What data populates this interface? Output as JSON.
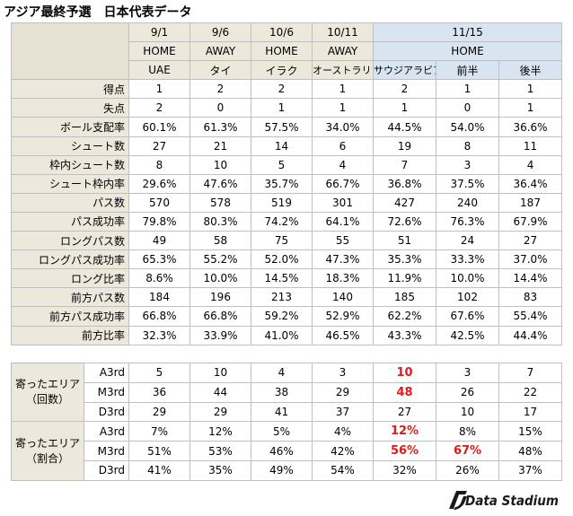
{
  "title": "アジア最終予選　日本代表データ",
  "matches": [
    {
      "date": "9/1",
      "venue": "HOME",
      "opponent": "UAE"
    },
    {
      "date": "9/6",
      "venue": "AWAY",
      "opponent": "タイ"
    },
    {
      "date": "10/6",
      "venue": "HOME",
      "opponent": "イラク"
    },
    {
      "date": "10/11",
      "venue": "AWAY",
      "opponent": "オーストラリア"
    }
  ],
  "latest": {
    "date": "11/15",
    "venue": "HOME",
    "columns": [
      "サウジアラビア",
      "前半",
      "後半"
    ]
  },
  "stats": [
    {
      "label": "得点",
      "values": [
        "1",
        "2",
        "2",
        "1",
        "2",
        "1",
        "1"
      ]
    },
    {
      "label": "失点",
      "values": [
        "2",
        "0",
        "1",
        "1",
        "1",
        "0",
        "1"
      ]
    },
    {
      "label": "ボール支配率",
      "values": [
        "60.1%",
        "61.3%",
        "57.5%",
        "34.0%",
        "44.5%",
        "54.0%",
        "36.6%"
      ]
    },
    {
      "label": "シュート数",
      "values": [
        "27",
        "21",
        "14",
        "6",
        "19",
        "8",
        "11"
      ]
    },
    {
      "label": "枠内シュート数",
      "values": [
        "8",
        "10",
        "5",
        "4",
        "7",
        "3",
        "4"
      ]
    },
    {
      "label": "シュート枠内率",
      "values": [
        "29.6%",
        "47.6%",
        "35.7%",
        "66.7%",
        "36.8%",
        "37.5%",
        "36.4%"
      ]
    },
    {
      "label": "パス数",
      "values": [
        "570",
        "578",
        "519",
        "301",
        "427",
        "240",
        "187"
      ]
    },
    {
      "label": "パス成功率",
      "values": [
        "79.8%",
        "80.3%",
        "74.2%",
        "64.1%",
        "72.6%",
        "76.3%",
        "67.9%"
      ]
    },
    {
      "label": "ロングパス数",
      "values": [
        "49",
        "58",
        "75",
        "55",
        "51",
        "24",
        "27"
      ]
    },
    {
      "label": "ロングパス成功率",
      "values": [
        "65.3%",
        "55.2%",
        "52.0%",
        "47.3%",
        "35.3%",
        "33.3%",
        "37.0%"
      ]
    },
    {
      "label": "ロング比率",
      "values": [
        "8.6%",
        "10.0%",
        "14.5%",
        "18.3%",
        "11.9%",
        "10.0%",
        "14.4%"
      ]
    },
    {
      "label": "前方パス数",
      "values": [
        "184",
        "196",
        "213",
        "140",
        "185",
        "102",
        "83"
      ]
    },
    {
      "label": "前方パス成功率",
      "values": [
        "66.8%",
        "66.8%",
        "59.2%",
        "52.9%",
        "62.2%",
        "67.6%",
        "55.4%"
      ]
    },
    {
      "label": "前方比率",
      "values": [
        "32.3%",
        "33.9%",
        "41.0%",
        "46.5%",
        "43.3%",
        "42.5%",
        "44.4%"
      ]
    }
  ],
  "areas": [
    {
      "label_line1": "寄ったエリア",
      "label_line2": "（回数）",
      "rows": [
        {
          "zone": "A3rd",
          "values": [
            "5",
            "10",
            "4",
            "3",
            "10",
            "3",
            "7"
          ],
          "highlight": [
            4
          ]
        },
        {
          "zone": "M3rd",
          "values": [
            "36",
            "44",
            "38",
            "29",
            "48",
            "26",
            "22"
          ],
          "highlight": [
            4
          ]
        },
        {
          "zone": "D3rd",
          "values": [
            "29",
            "29",
            "41",
            "37",
            "27",
            "10",
            "17"
          ],
          "highlight": []
        }
      ]
    },
    {
      "label_line1": "寄ったエリア",
      "label_line2": "（割合）",
      "rows": [
        {
          "zone": "A3rd",
          "values": [
            "7%",
            "12%",
            "5%",
            "4%",
            "12%",
            "8%",
            "15%"
          ],
          "highlight": [
            4
          ]
        },
        {
          "zone": "M3rd",
          "values": [
            "51%",
            "53%",
            "46%",
            "42%",
            "56%",
            "67%",
            "48%"
          ],
          "highlight": [
            4,
            5
          ]
        },
        {
          "zone": "D3rd",
          "values": [
            "41%",
            "35%",
            "49%",
            "54%",
            "32%",
            "26%",
            "37%"
          ],
          "highlight": []
        }
      ]
    }
  ],
  "logo": {
    "text": "Data Stadium",
    "color": "#1a1a1a"
  },
  "colors": {
    "highlight": "#e01b1b",
    "header_old": "#ece8db",
    "header_new": "#d8e4f0"
  }
}
